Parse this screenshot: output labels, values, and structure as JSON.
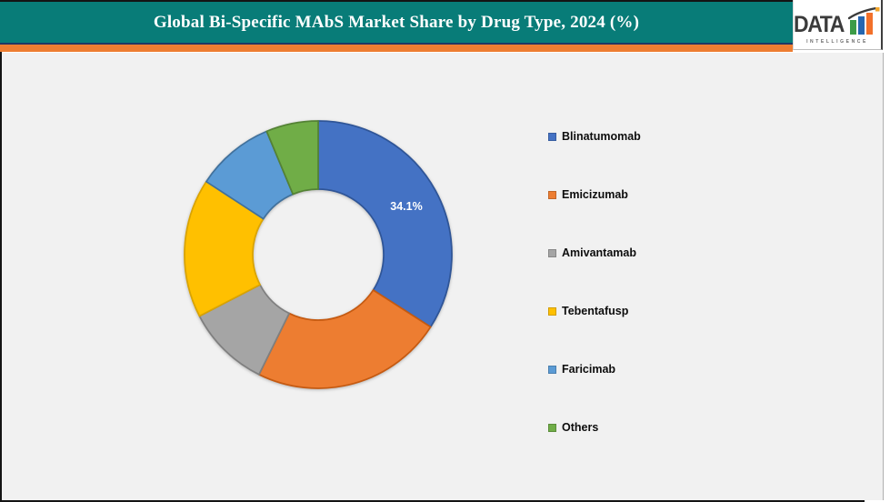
{
  "header": {
    "title": "Global Bi-Specific MAbS Market Share by Drug Type, 2024 (%)",
    "colors": {
      "bar": "#087C78",
      "navy_divider": "#1F3864",
      "orange_strip": "#ED7D31"
    }
  },
  "logo": {
    "text": "DATA",
    "subtext": "INTELLIGENCE",
    "text_color": "#3B3B3B",
    "bar_colors": [
      "#3C9C47",
      "#2566B0",
      "#F2702A"
    ]
  },
  "chart_data": {
    "type": "pie",
    "subtype": "donut",
    "title": "Global Bi-Specific MAbS Market Share by Drug Type, 2024 (%)",
    "unit": "%",
    "hole_ratio": 0.49,
    "legend_position": "right",
    "start_angle_deg": 0,
    "direction": "clockwise",
    "segments": [
      {
        "name": "Blinatumomab",
        "value": 34.1,
        "color": "#4472C4",
        "border": "#2F5597",
        "label": "34.1%",
        "label_color": "#FFFFFF"
      },
      {
        "name": "Emicizumab",
        "value": 23.2,
        "color": "#ED7D31",
        "border": "#C55A11"
      },
      {
        "name": "Amivantamab",
        "value": 10.1,
        "color": "#A5A5A5",
        "border": "#7F7F7F"
      },
      {
        "name": "Tebentafusp",
        "value": 16.8,
        "color": "#FFC000",
        "border": "#D9A300"
      },
      {
        "name": "Faricimab",
        "value": 9.5,
        "color": "#5B9BD5",
        "border": "#41719C"
      },
      {
        "name": "Others",
        "value": 6.3,
        "color": "#70AD47",
        "border": "#548235"
      }
    ]
  }
}
